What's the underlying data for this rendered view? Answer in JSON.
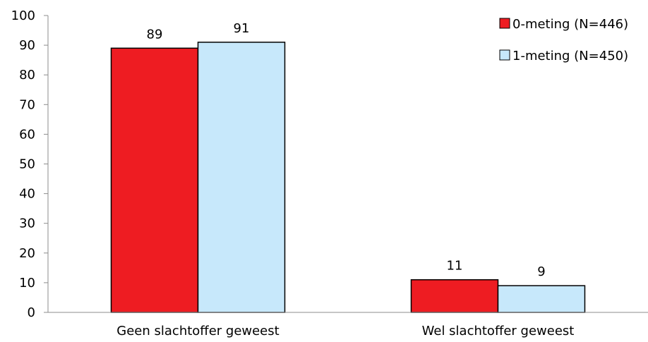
{
  "chart_data": {
    "type": "bar",
    "categories": [
      "Geen slachtoffer geweest",
      "Wel slachtoffer geweest"
    ],
    "series": [
      {
        "name": "0-meting (N=446)",
        "values": [
          89,
          11
        ],
        "color": "#ee1c22"
      },
      {
        "name": "1-meting (N=450)",
        "values": [
          91,
          9
        ],
        "color": "#c7e8fb"
      }
    ],
    "yticks": [
      "0",
      "10",
      "20",
      "30",
      "40",
      "50",
      "60",
      "70",
      "80",
      "90",
      "100"
    ],
    "ylim": [
      0,
      100
    ],
    "grid": false,
    "legend_position": "top-right",
    "data_labels": true
  }
}
